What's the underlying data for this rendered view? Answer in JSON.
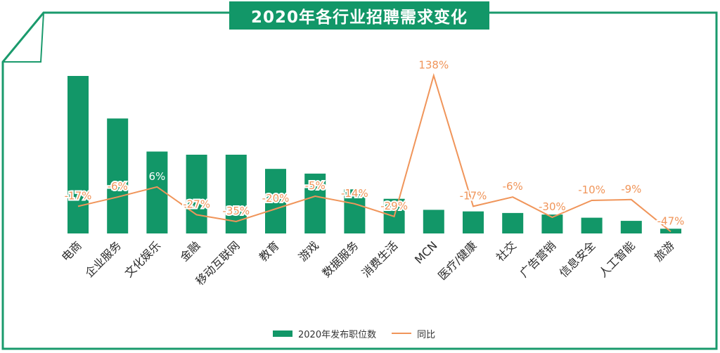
{
  "title": "2020年各行业招聘需求变化",
  "colors": {
    "bar": "#129768",
    "line": "#f0955a",
    "frame": "#1a9a6c"
  },
  "legend": {
    "bar_label": "2020年发布职位数",
    "line_label": "同比"
  },
  "chart_data": {
    "type": "bar",
    "title": "2020年各行业招聘需求变化",
    "categories": [
      "电商",
      "企业服务",
      "文化娱乐",
      "金融",
      "移动互联网",
      "教育",
      "游戏",
      "数据服务",
      "消费生活",
      "MCN",
      "医疗/健康",
      "社交",
      "广告营销",
      "信息安全",
      "人工智能",
      "旅游"
    ],
    "series": [
      {
        "name": "2020年发布职位数",
        "type": "bar",
        "values": [
          100,
          73,
          52,
          50,
          50,
          41,
          38,
          28,
          22,
          15,
          14,
          13,
          12,
          10,
          8,
          3
        ]
      },
      {
        "name": "同比",
        "type": "line",
        "unit": "%",
        "values": [
          -17,
          -6,
          6,
          -27,
          -35,
          -20,
          -5,
          -14,
          -29,
          138,
          -17,
          -6,
          -30,
          -10,
          -9,
          -47
        ],
        "labels": [
          "-17%",
          "-6%",
          "6%",
          "-27%",
          "-35%",
          "-20%",
          "-5%",
          "-14%",
          "-29%",
          "138%",
          "-17%",
          "-6%",
          "-30%",
          "-10%",
          "-9%",
          "-47%"
        ]
      }
    ],
    "legend_position": "bottom",
    "grid": false
  }
}
